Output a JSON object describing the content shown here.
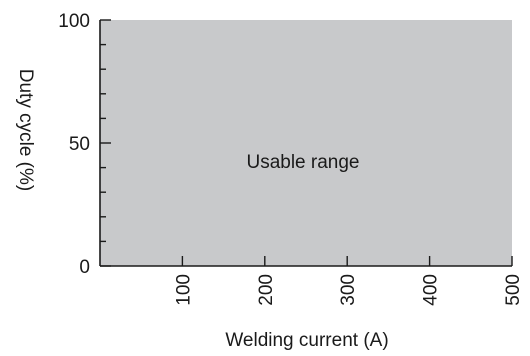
{
  "chart_data": {
    "type": "area",
    "title": "",
    "xlabel": "Welding current (A)",
    "ylabel": "Duty cycle (%)",
    "xlim": [
      0,
      500
    ],
    "ylim": [
      0,
      100
    ],
    "x_ticks": [
      100,
      200,
      300,
      400,
      500
    ],
    "x_tick_labels": [
      "100",
      "200",
      "300",
      "400",
      "500"
    ],
    "y_ticks": [
      0,
      50,
      100
    ],
    "y_tick_labels": [
      "0",
      "50",
      "100"
    ],
    "y_minor_step": 10,
    "grid": false,
    "fill_color": "#c8c9cb",
    "regions": [
      {
        "label": "Usable range",
        "x": [
          0,
          500
        ],
        "y": [
          0,
          100
        ]
      }
    ]
  }
}
